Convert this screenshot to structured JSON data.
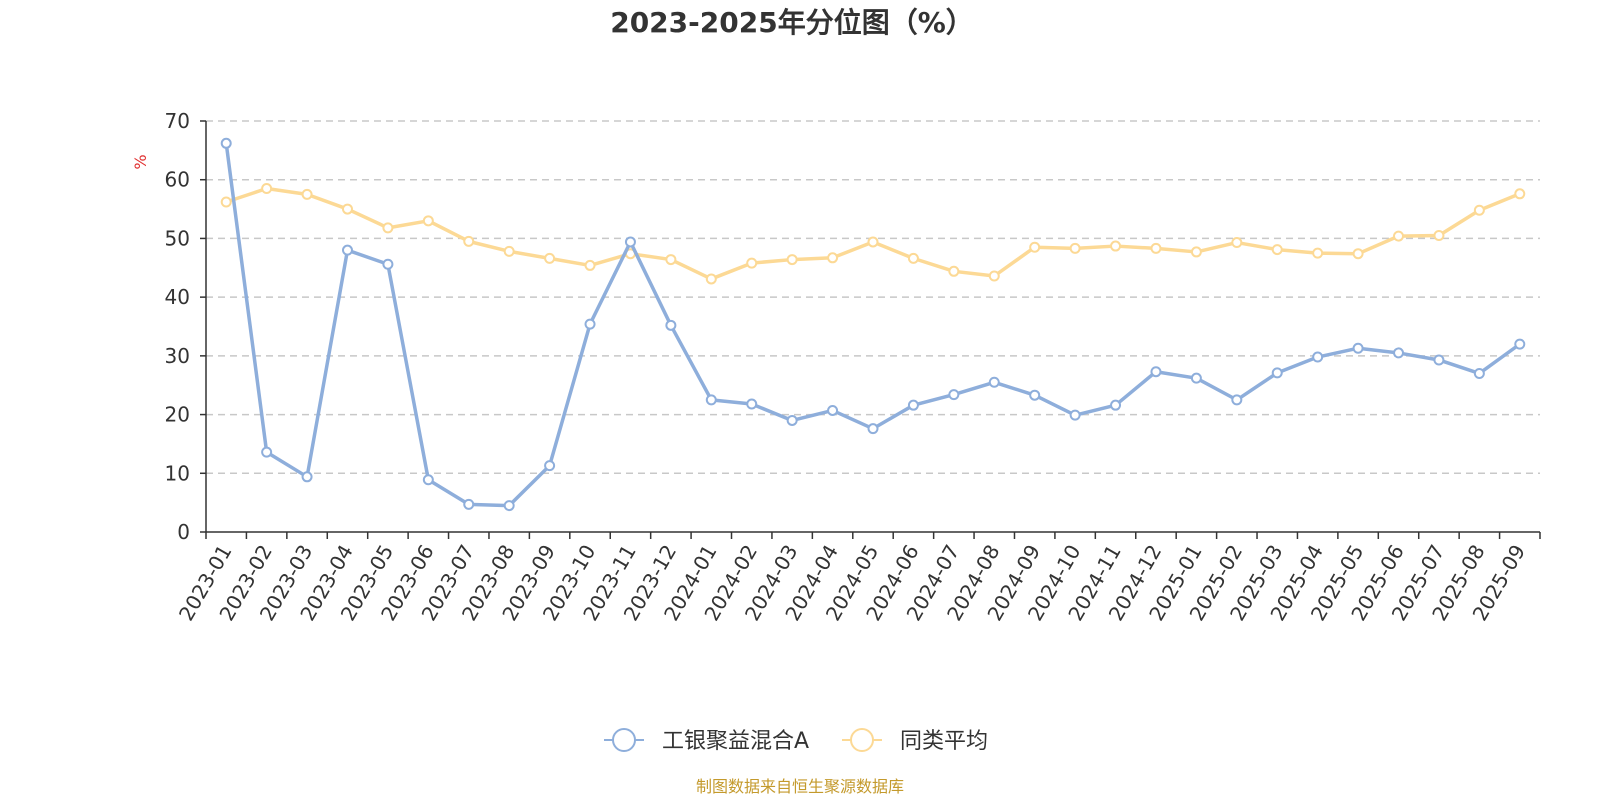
{
  "chart_data": {
    "type": "line",
    "title": "2023-2025年分位图（%）",
    "ylabel": "%",
    "ylim": [
      0,
      70
    ],
    "yticks": [
      0,
      10,
      20,
      30,
      40,
      50,
      60,
      70
    ],
    "grid": true,
    "legend_position": "bottom",
    "categories": [
      "2023-01",
      "2023-02",
      "2023-03",
      "2023-04",
      "2023-05",
      "2023-06",
      "2023-07",
      "2023-08",
      "2023-09",
      "2023-10",
      "2023-11",
      "2023-12",
      "2024-01",
      "2024-02",
      "2024-03",
      "2024-04",
      "2024-05",
      "2024-06",
      "2024-07",
      "2024-08",
      "2024-09",
      "2024-10",
      "2024-11",
      "2024-12",
      "2025-01",
      "2025-02",
      "2025-03",
      "2025-04",
      "2025-05",
      "2025-06",
      "2025-07",
      "2025-08",
      "2025-09"
    ],
    "series": [
      {
        "name": "工银聚益混合A",
        "color": "#8eaedb",
        "values": [
          66.2,
          13.6,
          9.4,
          48.0,
          45.6,
          8.9,
          4.7,
          4.5,
          11.3,
          35.4,
          49.4,
          35.2,
          22.5,
          21.8,
          19.0,
          20.7,
          17.6,
          21.6,
          23.4,
          25.5,
          23.3,
          19.9,
          21.6,
          27.3,
          26.2,
          22.5,
          27.1,
          29.8,
          31.3,
          30.5,
          29.3,
          27.0,
          32.0
        ]
      },
      {
        "name": "同类平均",
        "color": "#fcd995",
        "values": [
          56.2,
          58.5,
          57.5,
          55.0,
          51.8,
          53.0,
          49.5,
          47.8,
          46.6,
          45.4,
          47.4,
          46.4,
          43.1,
          45.8,
          46.4,
          46.7,
          49.4,
          46.6,
          44.4,
          43.6,
          48.5,
          48.3,
          48.7,
          48.3,
          47.7,
          49.3,
          48.1,
          47.5,
          47.4,
          50.4,
          50.5,
          54.8,
          57.6
        ]
      }
    ],
    "source_note": "制图数据来自恒生聚源数据库",
    "colors": {
      "axis": "#333333",
      "grid": "#c8c8c8",
      "unit": "#e03030",
      "source": "#c49a2c"
    }
  }
}
